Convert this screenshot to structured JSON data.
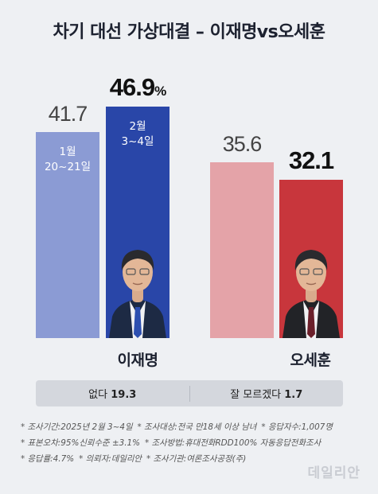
{
  "title": "차기 대선 가상대결 – 이재명vs오세훈",
  "chart_data": {
    "type": "bar",
    "title": "차기 대선 가상대결 – 이재명vs오세훈",
    "unit": "%",
    "ylim": [
      0,
      55
    ],
    "bars": [
      {
        "candidate": "이재명",
        "period": "1월\n20~21일",
        "value": 41.7,
        "label": "41.7",
        "color": "#8b9bd4",
        "emphasis": false
      },
      {
        "candidate": "이재명",
        "period": "2월\n3~4일",
        "value": 46.9,
        "label": "46.9",
        "suffix": "%",
        "color": "#2946a8",
        "emphasis": true
      },
      {
        "candidate": "오세훈",
        "period": "",
        "value": 35.6,
        "label": "35.6",
        "color": "#e4a3a8",
        "emphasis": false
      },
      {
        "candidate": "오세훈",
        "period": "",
        "value": 32.1,
        "label": "32.1",
        "color": "#c8363c",
        "emphasis": true
      }
    ],
    "candidates": [
      "이재명",
      "오세훈"
    ]
  },
  "others": {
    "none_label": "없다",
    "none_value": "19.3",
    "unknown_label": "잘 모르겠다",
    "unknown_value": "1.7"
  },
  "notes": [
    [
      "* 조사기간:2025년 2월 3~4일",
      "* 조사대상:전국 만18세 이상 남녀",
      "* 응답자수:1,007명"
    ],
    [
      "* 표본오차:95%신뢰수준 ±3.1%",
      "* 조사방법:휴대전화RDD100% 자동응답전화조사"
    ],
    [
      "* 응답률:4.7%",
      "* 의뢰자:데일리안",
      "* 조사기관:여론조사공정(주)"
    ]
  ],
  "watermark": "데일리안"
}
